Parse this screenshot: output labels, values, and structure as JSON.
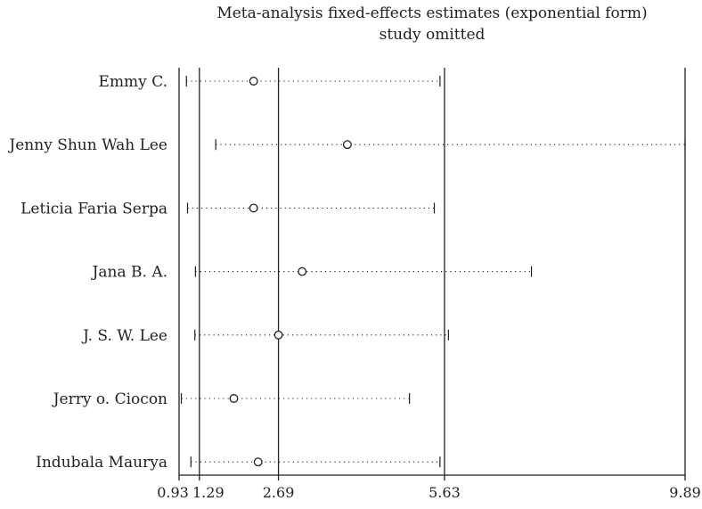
{
  "chart_data": {
    "type": "scatter",
    "title": "Meta-analysis fixed-effects estimates (exponential form)",
    "subtitle": "study omitted",
    "xticks": [
      "0.93",
      "1.29",
      "2.69",
      "5.63",
      "9.89"
    ],
    "xlim": [
      0.93,
      9.89
    ],
    "reference_lines": [
      1.29,
      2.69,
      5.63
    ],
    "studies": [
      {
        "name": "Emmy C.",
        "estimate": 2.25,
        "lower": 1.06,
        "upper": 5.55
      },
      {
        "name": "Jenny Shun Wah Lee",
        "estimate": 3.91,
        "lower": 1.58,
        "upper": 9.89
      },
      {
        "name": "Leticia Faria Serpa",
        "estimate": 2.25,
        "lower": 1.08,
        "upper": 5.45
      },
      {
        "name": "Jana B. A.",
        "estimate": 3.11,
        "lower": 1.22,
        "upper": 7.17
      },
      {
        "name": "J. S. W. Lee",
        "estimate": 2.69,
        "lower": 1.21,
        "upper": 5.7
      },
      {
        "name": "Jerry o. Ciocon",
        "estimate": 1.9,
        "lower": 0.97,
        "upper": 5.01
      },
      {
        "name": "Indubala Maurya",
        "estimate": 2.33,
        "lower": 1.14,
        "upper": 5.55
      }
    ]
  }
}
